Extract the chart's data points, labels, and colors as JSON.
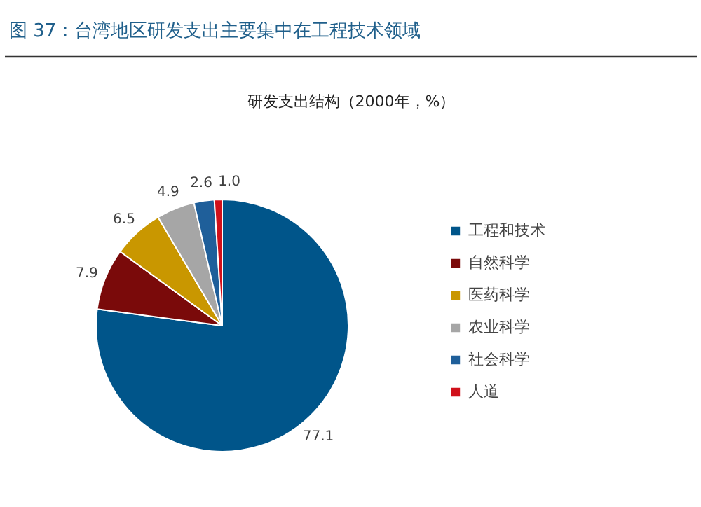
{
  "chart_data": {
    "type": "pie",
    "title": "图 37：台湾地区研发支出主要集中在工程技术领域",
    "subtitle": "研发支出结构（2000年，%）",
    "categories": [
      "工程和技术",
      "自然科学",
      "医药科学",
      "农业科学",
      "社会科学",
      "人道"
    ],
    "values": [
      77.1,
      7.9,
      6.5,
      4.9,
      2.6,
      1.0
    ],
    "colors": [
      "#00558a",
      "#7a0a0a",
      "#c99700",
      "#a6a6a6",
      "#1f5f9a",
      "#d0101a"
    ],
    "value_labels": [
      "77.1",
      "7.9",
      "6.5",
      "4.9",
      "2.6",
      "1.0"
    ],
    "legend": "right"
  }
}
